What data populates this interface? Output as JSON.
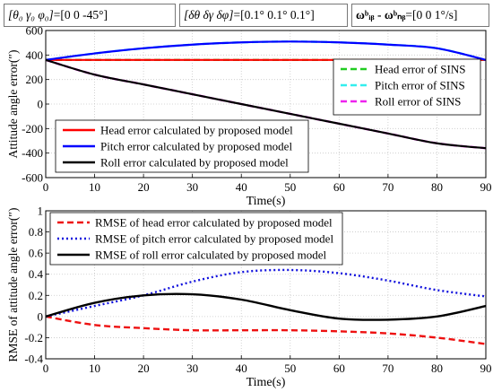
{
  "header": {
    "init_attitude": {
      "lhs": "[θ₀ γ₀ φ₀]",
      "rhs": "[0 0 -45°]"
    },
    "init_error": {
      "lhs": "[δθ δγ δφ]",
      "rhs": "[0.1° 0.1° 0.1°]"
    },
    "angular_rate": {
      "lhs": "ωᵇᵢᵦ - ωᵇₙᵦ",
      "rhs": "[0 0 1°/s]"
    }
  },
  "chart_data": [
    {
      "type": "line",
      "xlabel": "Time(s)",
      "ylabel": "Attitude angle error(″)",
      "xlim": [
        0,
        90
      ],
      "ylim": [
        -600,
        600
      ],
      "xticks": [
        "0",
        "10",
        "20",
        "30",
        "40",
        "50",
        "60",
        "70",
        "80",
        "90"
      ],
      "yticks": [
        "-600",
        "-400",
        "-200",
        "0",
        "200",
        "400",
        "600"
      ],
      "grid": true,
      "x": [
        0,
        10,
        20,
        30,
        40,
        50,
        60,
        70,
        80,
        90
      ],
      "series": [
        {
          "name": "Head error of SINS",
          "color": "#22cc22",
          "dash": true,
          "values": [
            360,
            360,
            360,
            360,
            360,
            360,
            360,
            360,
            360,
            360
          ]
        },
        {
          "name": "Pitch error of SINS",
          "color": "#33eeee",
          "dash": true,
          "values": [
            360,
            413,
            455,
            485,
            503,
            510,
            503,
            485,
            455,
            360
          ]
        },
        {
          "name": "Roll error of SINS",
          "color": "#ee22ee",
          "dash": true,
          "values": [
            360,
            240,
            160,
            80,
            0,
            -80,
            -160,
            -240,
            -320,
            -360
          ]
        },
        {
          "name": "Head error calculated by proposed model",
          "color": "#ff0000",
          "dash": false,
          "values": [
            360,
            360,
            360,
            360,
            360,
            360,
            360,
            360,
            360,
            360
          ]
        },
        {
          "name": "Pitch error calculated by proposed model",
          "color": "#0000ff",
          "dash": false,
          "values": [
            360,
            413,
            455,
            485,
            503,
            510,
            503,
            485,
            455,
            360
          ]
        },
        {
          "name": "Roll error calculated by proposed model",
          "color": "#000000",
          "dash": false,
          "values": [
            360,
            240,
            160,
            80,
            0,
            -80,
            -160,
            -240,
            -320,
            -360
          ]
        }
      ],
      "legends": [
        {
          "position": "right",
          "entries": [
            "Head error of SINS",
            "Pitch error of SINS",
            "Roll error of SINS"
          ]
        },
        {
          "position": "lower-left",
          "entries": [
            "Head error calculated by proposed model",
            "Pitch error calculated by proposed model",
            "Roll error calculated by proposed model"
          ]
        }
      ]
    },
    {
      "type": "line",
      "xlabel": "Time(s)",
      "ylabel": "RMSE of attitude angle error(″)",
      "xlim": [
        0,
        90
      ],
      "ylim": [
        -0.4,
        1
      ],
      "xticks": [
        "0",
        "10",
        "20",
        "30",
        "40",
        "50",
        "60",
        "70",
        "80",
        "90"
      ],
      "yticks": [
        "-0.4",
        "-0.2",
        "0",
        "0.2",
        "0.4",
        "0.6",
        "0.8",
        "1"
      ],
      "grid": true,
      "x": [
        0,
        10,
        20,
        30,
        40,
        50,
        60,
        70,
        80,
        90
      ],
      "series": [
        {
          "name": "RMSE of head error calculated by proposed model",
          "color": "#ee1111",
          "style": "dashed",
          "values": [
            0,
            -0.08,
            -0.11,
            -0.13,
            -0.13,
            -0.13,
            -0.14,
            -0.16,
            -0.2,
            -0.26
          ]
        },
        {
          "name": "RMSE of pitch error calculated by proposed model",
          "color": "#1111dd",
          "style": "dotted",
          "values": [
            0,
            0.1,
            0.2,
            0.33,
            0.42,
            0.44,
            0.41,
            0.34,
            0.25,
            0.19
          ]
        },
        {
          "name": "RMSE of roll error calculated by proposed model",
          "color": "#000000",
          "style": "solid",
          "values": [
            0,
            0.13,
            0.2,
            0.21,
            0.16,
            0.06,
            -0.02,
            -0.03,
            0,
            0.1
          ]
        }
      ],
      "legends": [
        {
          "position": "top-left",
          "entries": [
            "RMSE of head error calculated by proposed model",
            "RMSE of pitch error calculated by proposed model",
            "RMSE of roll error calculated by proposed model"
          ]
        }
      ]
    }
  ]
}
